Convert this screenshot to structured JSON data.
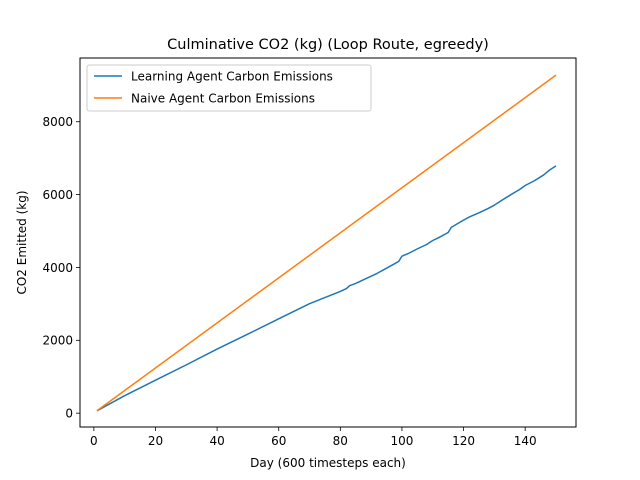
{
  "chart_data": {
    "type": "line",
    "title": "Culminative CO2 (kg) (Loop Route, egreedy)",
    "xlabel": "Day (600 timesteps each)",
    "ylabel": "CO2 Emitted (kg)",
    "xlim": [
      -4.5,
      156.5
    ],
    "ylim": [
      -380,
      9750
    ],
    "xticks": [
      0,
      20,
      40,
      60,
      80,
      100,
      120,
      140
    ],
    "yticks": [
      0,
      2000,
      4000,
      6000,
      8000
    ],
    "legend_position": "top-left",
    "series": [
      {
        "name": "Learning Agent Carbon Emissions",
        "color": "#1f77b4",
        "x": [
          1,
          10,
          20,
          30,
          40,
          50,
          60,
          70,
          80,
          82,
          83,
          85,
          88,
          92,
          95,
          98,
          99,
          100,
          102,
          105,
          108,
          110,
          112,
          115,
          116,
          118,
          120,
          122,
          125,
          128,
          130,
          132,
          135,
          138,
          140,
          143,
          146,
          148,
          150
        ],
        "y": [
          65,
          480,
          905,
          1325,
          1760,
          2170,
          2590,
          3005,
          3340,
          3420,
          3500,
          3560,
          3680,
          3840,
          3980,
          4120,
          4170,
          4310,
          4380,
          4510,
          4630,
          4740,
          4820,
          4960,
          5100,
          5200,
          5300,
          5390,
          5500,
          5620,
          5710,
          5820,
          5980,
          6130,
          6250,
          6380,
          6540,
          6680,
          6790
        ]
      },
      {
        "name": "Naive Agent Carbon Emissions",
        "color": "#ff7f0e",
        "x": [
          1,
          150
        ],
        "y": [
          65,
          9280
        ]
      }
    ]
  }
}
